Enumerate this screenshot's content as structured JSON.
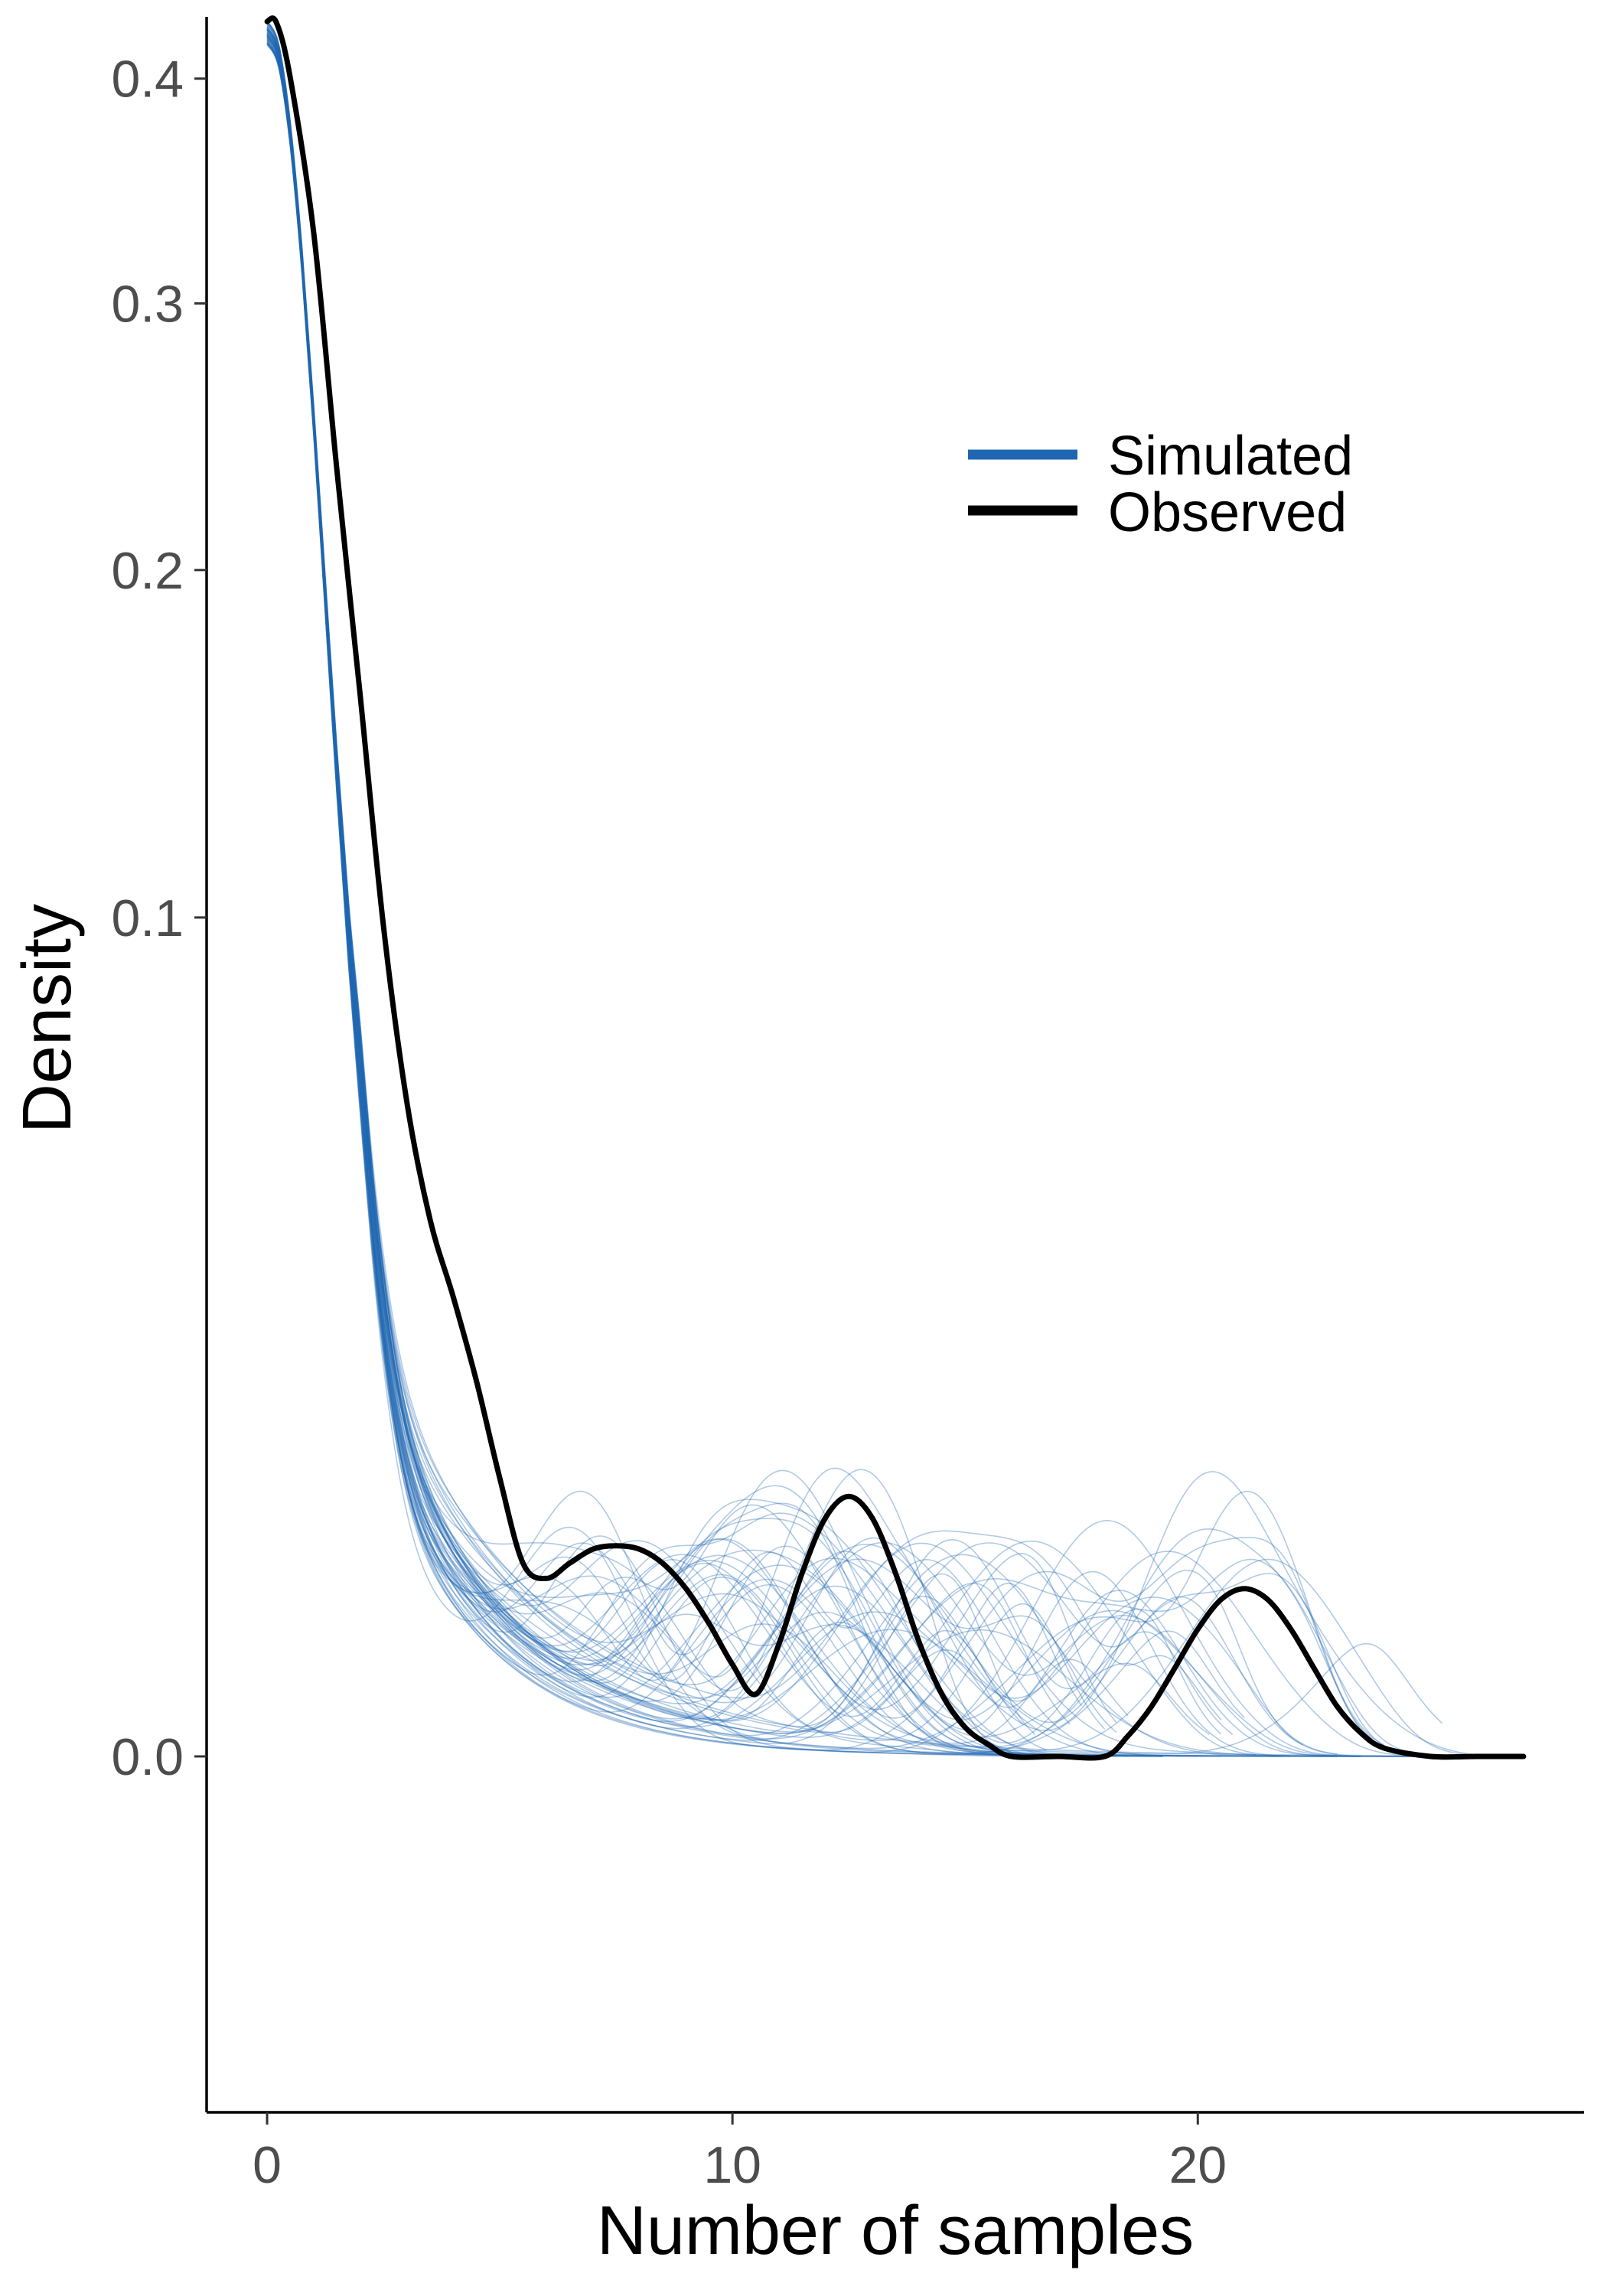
{
  "chart_data": {
    "type": "line",
    "title": "",
    "xlabel": "Number of samples",
    "ylabel": "Density",
    "xlim": [
      -1.3,
      28.3
    ],
    "ylim": [
      -0.018,
      0.43
    ],
    "x_ticks": [
      0,
      10,
      20
    ],
    "x_tick_labels": [
      "0",
      "10",
      "20"
    ],
    "y_ticks": [
      0.0,
      0.1,
      0.2,
      0.3,
      0.4
    ],
    "y_tick_labels": [
      "0.0",
      "0.1",
      "0.2",
      "0.3",
      "0.4"
    ],
    "y_scale": "square-root",
    "grid": false,
    "legend": {
      "position": "top-right",
      "entries": [
        {
          "label": "Simulated",
          "color": "#1f66b2"
        },
        {
          "label": "Observed",
          "color": "#000000"
        }
      ]
    },
    "series": [
      {
        "name": "Observed",
        "color": "#000000",
        "x": [
          0,
          0.2,
          0.5,
          1.0,
          1.5,
          2.0,
          2.5,
          3.0,
          3.5,
          4.0,
          4.5,
          5.0,
          5.5,
          6.0,
          6.5,
          7.0,
          7.5,
          8.0,
          8.5,
          9.0,
          9.5,
          10.0,
          10.5,
          11.0,
          11.5,
          12.0,
          12.5,
          13.0,
          13.5,
          14.0,
          14.5,
          15.0,
          15.5,
          16.0,
          17.0,
          18.0,
          18.5,
          19.0,
          19.5,
          20.0,
          20.5,
          21.0,
          21.5,
          22.0,
          22.5,
          23.0,
          23.5,
          24.0,
          25.0,
          26.0,
          27.0
        ],
        "y": [
          0.4277,
          0.4272,
          0.4,
          0.33,
          0.235,
          0.16,
          0.098,
          0.061,
          0.041,
          0.03,
          0.02,
          0.011,
          0.0053,
          0.0045,
          0.0053,
          0.0061,
          0.0063,
          0.0061,
          0.0053,
          0.004,
          0.0025,
          0.0012,
          0.00055,
          0.0018,
          0.0048,
          0.0081,
          0.0096,
          0.0081,
          0.0048,
          0.0019,
          0.00055,
          0.00012,
          2e-05,
          0.0,
          0.0,
          0.0,
          6e-05,
          0.00035,
          0.0011,
          0.0023,
          0.0035,
          0.004,
          0.0035,
          0.0023,
          0.0011,
          0.00035,
          8e-05,
          1e-05,
          0.0,
          0.0,
          0.0
        ]
      },
      {
        "name": "Simulated",
        "color": "#1f66b2",
        "replicates": 60
      }
    ]
  }
}
